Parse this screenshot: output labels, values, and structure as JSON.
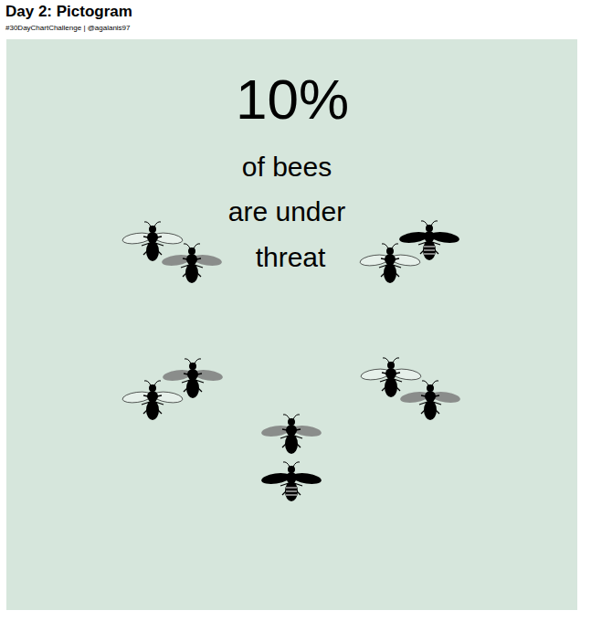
{
  "chart_data": {
    "type": "pictogram",
    "title": "Day 2: Pictogram",
    "subtitle": "#30DayChartChallenge | @agalanis97",
    "values": [
      10
    ],
    "value_labels": [
      "10%"
    ],
    "annotations": [
      "of bees",
      "are under",
      "threat"
    ],
    "color": "#000000"
  }
}
